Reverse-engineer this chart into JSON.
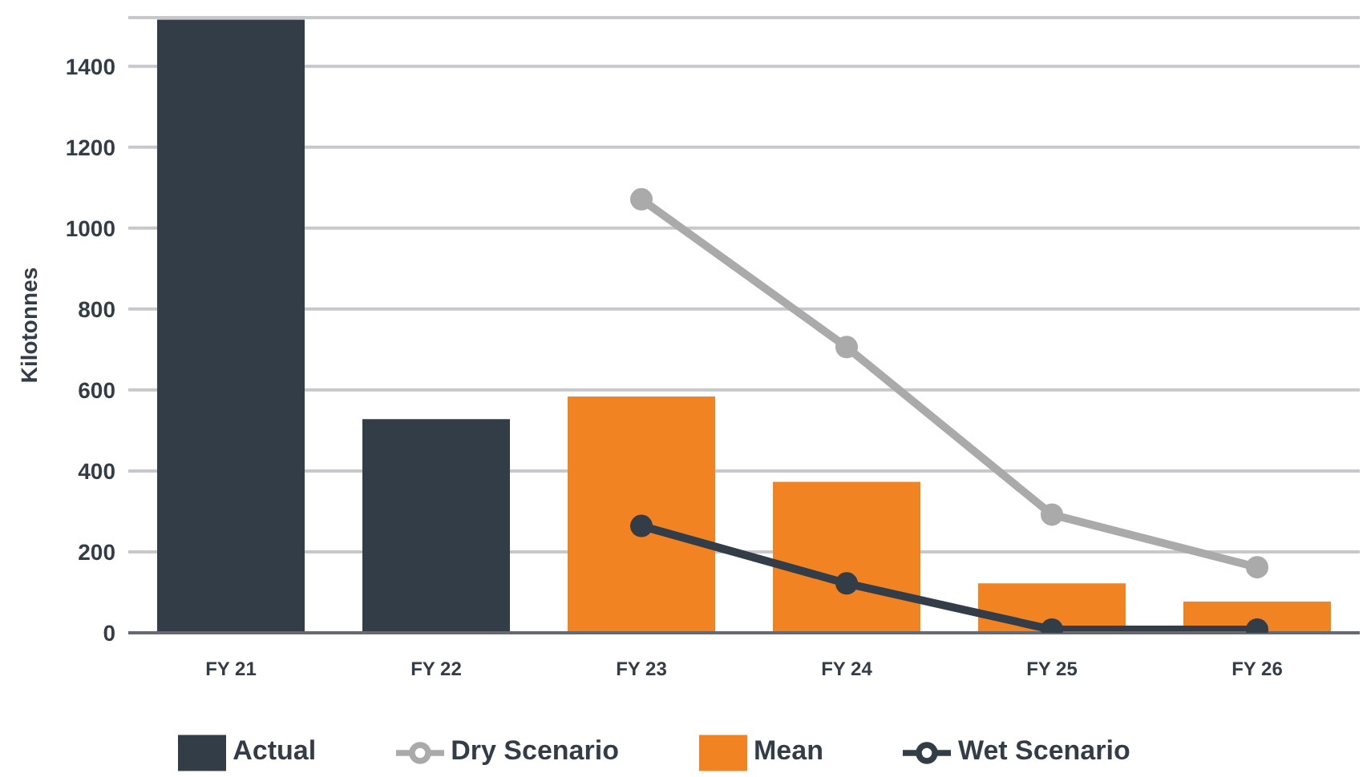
{
  "chart_data": {
    "type": "bar",
    "ylabel": "Kilotonnes",
    "categories": [
      "FY 21",
      "FY 22",
      "FY 23",
      "FY 24",
      "FY 25",
      "FY 26"
    ],
    "series": [
      {
        "name": "Actual",
        "color": "#333d47",
        "values": [
          1515,
          528,
          null,
          null,
          null,
          null
        ]
      },
      {
        "name": "Mean",
        "color": "#f28322",
        "values": [
          null,
          null,
          584,
          373,
          122,
          77
        ]
      },
      {
        "name": "Wet Scenario",
        "type": "line",
        "color": "#333d47",
        "values": [
          null,
          null,
          264,
          122,
          8,
          8
        ]
      },
      {
        "name": "Dry Scenario",
        "type": "line",
        "color": "#aaaaaa",
        "values": [
          null,
          null,
          1071,
          706,
          292,
          162
        ]
      }
    ],
    "stacked": true,
    "ylim": [
      0,
      1520
    ],
    "yticks": [
      0,
      200,
      400,
      600,
      800,
      1000,
      1200,
      1400
    ],
    "grid": "y",
    "legend": "bottom",
    "marker": "circle",
    "line_style": "solid"
  }
}
